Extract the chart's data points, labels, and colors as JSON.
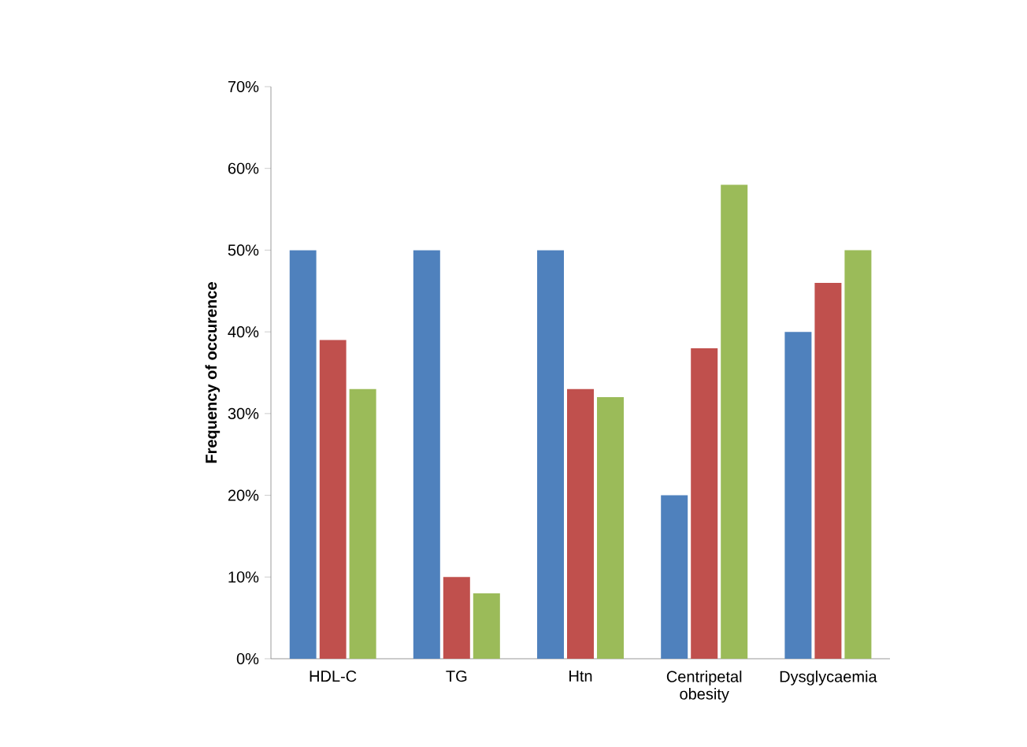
{
  "chart_data": {
    "type": "bar",
    "ylabel": "Frequency of occurence",
    "categories": [
      "HDL-C",
      "TG",
      "Htn",
      "Centripetal obesity",
      "Dysglycaemia"
    ],
    "series": [
      {
        "color": "#4f81bd",
        "values": [
          50,
          50,
          50,
          20,
          40
        ]
      },
      {
        "color": "#c0504d",
        "values": [
          39,
          10,
          33,
          38,
          46
        ]
      },
      {
        "color": "#9bbb59",
        "values": [
          33,
          8,
          32,
          58,
          50
        ]
      }
    ],
    "ylim": [
      0,
      70
    ],
    "yticks": [
      {
        "value": 0,
        "label": "0%"
      },
      {
        "value": 10,
        "label": "10%"
      },
      {
        "value": 20,
        "label": "20%"
      },
      {
        "value": 30,
        "label": "30%"
      },
      {
        "value": 40,
        "label": "40%"
      },
      {
        "value": 50,
        "label": "50%"
      },
      {
        "value": 60,
        "label": "60%"
      },
      {
        "value": 70,
        "label": "70%"
      }
    ],
    "grid": false
  }
}
